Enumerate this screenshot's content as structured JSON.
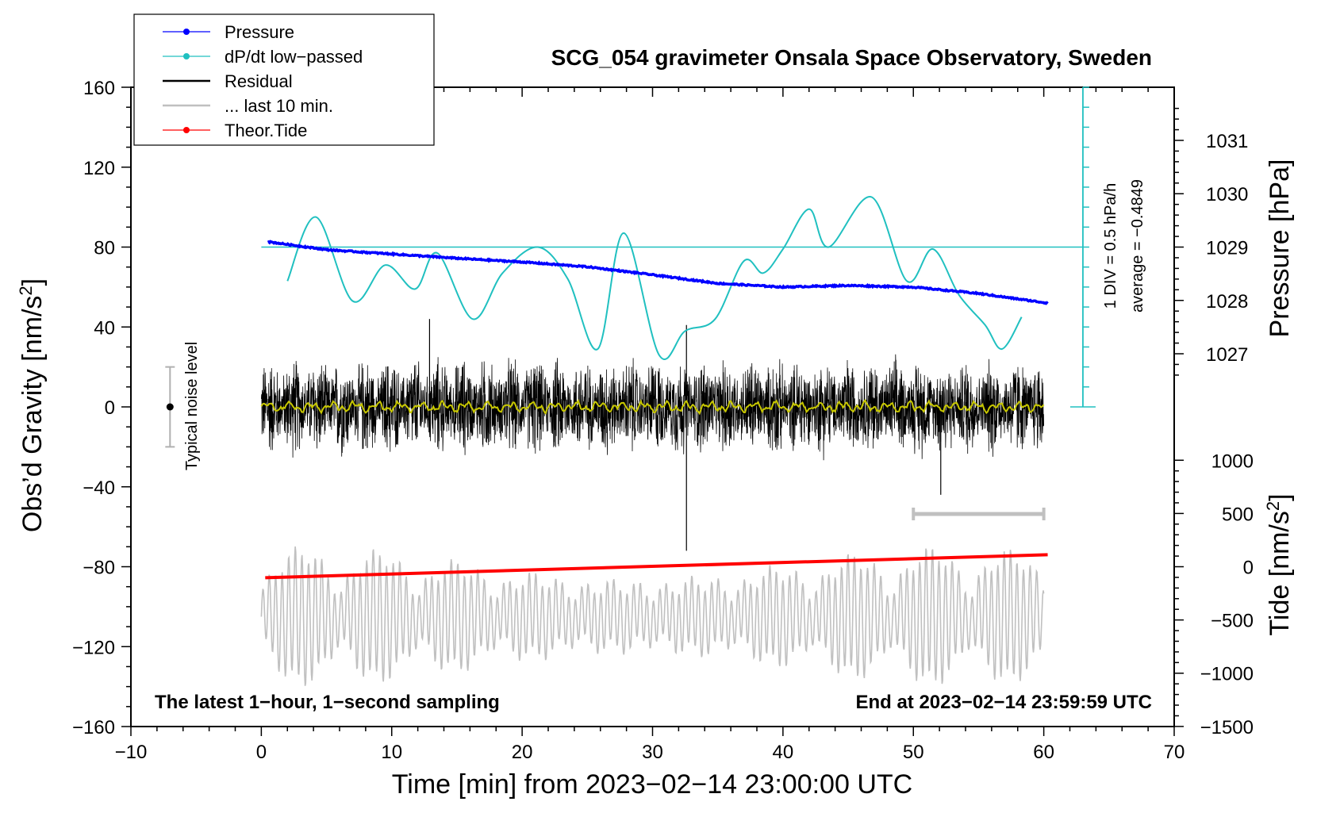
{
  "colors": {
    "pressure": "#0000ff",
    "dpdt": "#20c0c0",
    "residual": "#000000",
    "last10": "#c0c0c0",
    "tide": "#ff0000",
    "lowpass": "#c8c800",
    "text": "#000000"
  },
  "chart_data": {
    "type": "line",
    "title": "SCG_054 gravimeter Onsala Space Observatory, Sweden",
    "xlabel": "Time [min] from 2023−02−14 23:00:00 UTC",
    "ylabel_left": "Obs’d Gravity [nm/s",
    "ylabel_left_sup": "2",
    "ylabel_left_end": "]",
    "ylabel_right_top": "Pressure [hPa]",
    "ylabel_right_bottom": "Tide [nm/s",
    "ylabel_right_bottom_sup": "2",
    "ylabel_right_bottom_end": "]",
    "xlim": [
      -10,
      70
    ],
    "ylim": [
      -160,
      160
    ],
    "x_ticks": [
      "−10",
      "0",
      "10",
      "20",
      "30",
      "40",
      "50",
      "60",
      "70"
    ],
    "x_tick_values": [
      -10,
      0,
      10,
      20,
      30,
      40,
      50,
      60,
      70
    ],
    "y_ticks": [
      "160",
      "120",
      "80",
      "40",
      "0",
      "−40",
      "−80",
      "−120",
      "−160"
    ],
    "y_tick_values": [
      160,
      120,
      80,
      40,
      0,
      -40,
      -80,
      -120,
      -160
    ],
    "pressure_axis": {
      "ticks": [
        "1031",
        "1030",
        "1029",
        "1028",
        "1027"
      ],
      "tick_values": [
        1031,
        1030,
        1029,
        1028,
        1027
      ],
      "map": {
        "p0": 1029,
        "g0": 80,
        "nm_per_hpa": 26.7
      }
    },
    "tide_axis": {
      "ticks": [
        "1000",
        "500",
        "0",
        "−500",
        "−1000",
        "−1500"
      ],
      "tick_values": [
        1000,
        500,
        0,
        -500,
        -1000,
        -1500
      ],
      "map": {
        "t0": 0,
        "g0": -80,
        "nm_per_tide": 0.0533
      }
    },
    "legend": [
      {
        "label": "Pressure",
        "key": "pressure",
        "marker": true
      },
      {
        "label": "dP/dt low−passed",
        "key": "dpdt",
        "marker": true
      },
      {
        "label": "Residual",
        "key": "residual",
        "marker": false
      },
      {
        "label": "... last 10 min.",
        "key": "last10",
        "marker": false
      },
      {
        "label": "Theor.Tide",
        "key": "tide",
        "marker": true
      }
    ],
    "series": [
      {
        "name": "Pressure",
        "unit": "hPa",
        "x": [
          0.5,
          5,
          10,
          15,
          20,
          25,
          30,
          35,
          40,
          45,
          50,
          55,
          60.3
        ],
        "values": [
          1029.1,
          1028.95,
          1028.87,
          1028.79,
          1028.72,
          1028.63,
          1028.48,
          1028.32,
          1028.25,
          1028.28,
          1028.25,
          1028.13,
          1027.95
        ]
      },
      {
        "name": "dP/dt low-passed",
        "unit": "nm/s2 plot units",
        "x": [
          2,
          4.2,
          7,
          9.5,
          11.8,
          13.5,
          16.2,
          18.5,
          21.2,
          23.5,
          25.8,
          27.8,
          30.5,
          32.5,
          34.8,
          37,
          38.5,
          40,
          42,
          43.5,
          46.8,
          49.5,
          51.5,
          53.5,
          55.5,
          56.8,
          58.3
        ],
        "values": [
          63,
          95,
          53,
          71,
          59,
          77,
          44,
          67,
          80,
          64,
          29,
          87,
          26,
          38,
          44,
          73,
          67,
          79,
          99,
          80,
          105,
          63,
          79,
          56,
          41,
          29,
          45
        ]
      },
      {
        "name": "Residual",
        "unit": "nm/s2",
        "x": [
          0,
          60
        ],
        "envelope": 20,
        "spikes": [
          {
            "x": 32.6,
            "low": -72,
            "high": 41
          },
          {
            "x": 12.9,
            "high": 44
          },
          {
            "x": 52.1,
            "low": -44
          }
        ]
      },
      {
        "name": "Theor.Tide",
        "unit": "nm/s2",
        "x": [
          0.3,
          60.3
        ],
        "values": [
          -85.5,
          -74
        ]
      },
      {
        "name": "... last 10 min.",
        "unit": "scaled",
        "x": [
          0,
          60
        ],
        "center": -105,
        "amplitude": 32
      }
    ],
    "dpdt_annotation": {
      "scale": "1 DIV = 0.5 hPa/h",
      "average": "average = −0.4849",
      "zero_level": 80
    },
    "noise_indicator": {
      "label": "Typical noise level",
      "x": -7,
      "value": 0,
      "range": 20
    },
    "window_bar": {
      "x_start": 50,
      "x_end": 60
    },
    "footer_left": "The latest 1−hour, 1−second sampling",
    "footer_right": "End at 2023−02−14 23:59:59 UTC"
  }
}
